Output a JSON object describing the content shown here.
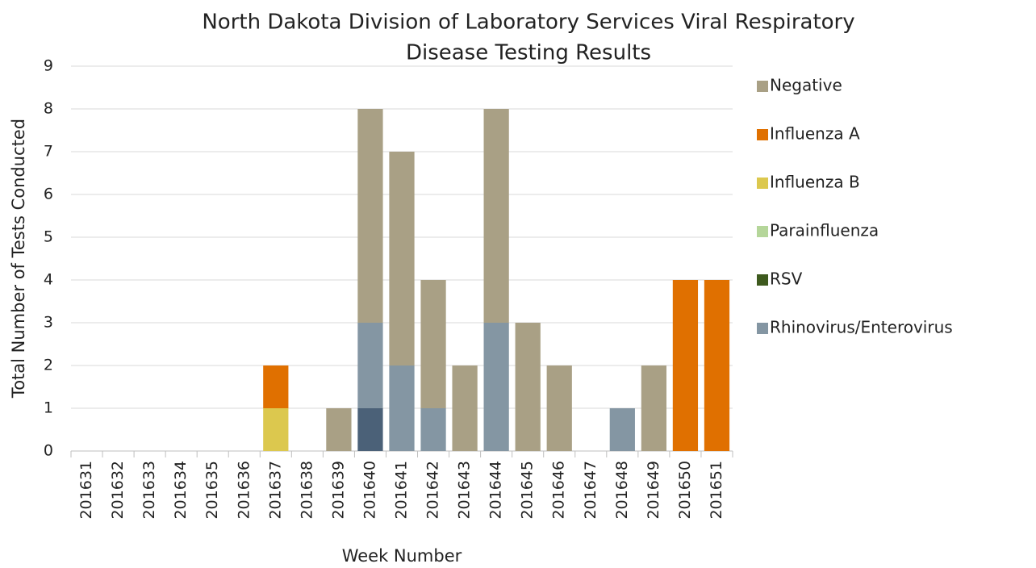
{
  "chart_data": {
    "type": "stacked_bar",
    "title": [
      "North Dakota Division of Laboratory Services Viral Respiratory",
      "Disease Testing Results"
    ],
    "x_label": "Week Number",
    "y_label": "Total Number of Tests Conducted",
    "categories": [
      "201631",
      "201632",
      "201633",
      "201634",
      "201635",
      "201636",
      "201637",
      "201638",
      "201639",
      "201640",
      "201641",
      "201642",
      "201643",
      "201644",
      "201645",
      "201646",
      "201647",
      "201648",
      "201649",
      "201650",
      "201651"
    ],
    "series": [
      {
        "name": "Negative",
        "color": "#a9a085",
        "values": [
          0,
          0,
          0,
          0,
          0,
          0,
          0,
          0,
          1,
          5,
          5,
          3,
          2,
          5,
          3,
          2,
          0,
          0,
          2,
          0,
          0
        ]
      },
      {
        "name": "Influenza A",
        "color": "#e07000",
        "values": [
          0,
          0,
          0,
          0,
          0,
          0,
          1,
          0,
          0,
          0,
          0,
          0,
          0,
          0,
          0,
          0,
          0,
          0,
          0,
          4,
          4
        ]
      },
      {
        "name": "Influenza B",
        "color": "#dcc84e",
        "values": [
          0,
          0,
          0,
          0,
          0,
          0,
          1,
          0,
          0,
          0,
          0,
          0,
          0,
          0,
          0,
          0,
          0,
          0,
          0,
          0,
          0
        ]
      },
      {
        "name": "Parainfluenza",
        "color": "#b5d69a",
        "values": [
          0,
          0,
          0,
          0,
          0,
          0,
          0,
          0,
          0,
          0,
          0,
          0,
          0,
          0,
          0,
          0,
          0,
          0,
          0,
          0,
          0
        ]
      },
      {
        "name": "RSV",
        "color": "#3e5a1e",
        "values": [
          0,
          0,
          0,
          0,
          0,
          0,
          0,
          0,
          0,
          0,
          0,
          0,
          0,
          0,
          0,
          0,
          0,
          0,
          0,
          0,
          0
        ]
      },
      {
        "name": "Rhinovirus/Enterovirus",
        "color": "#8496a3",
        "values": [
          0,
          0,
          0,
          0,
          0,
          0,
          0,
          0,
          0,
          2,
          2,
          1,
          0,
          3,
          0,
          0,
          0,
          1,
          0,
          0,
          0
        ]
      },
      {
        "name": null,
        "color": "#4b6178",
        "values": [
          0,
          0,
          0,
          0,
          0,
          0,
          0,
          0,
          0,
          1,
          0,
          0,
          0,
          0,
          0,
          0,
          0,
          0,
          0,
          0,
          0
        ]
      }
    ],
    "ylim": [
      0,
      9
    ],
    "yticks": [
      0,
      1,
      2,
      3,
      4,
      5,
      6,
      7,
      8,
      9
    ],
    "grid": true,
    "legend": "right"
  }
}
